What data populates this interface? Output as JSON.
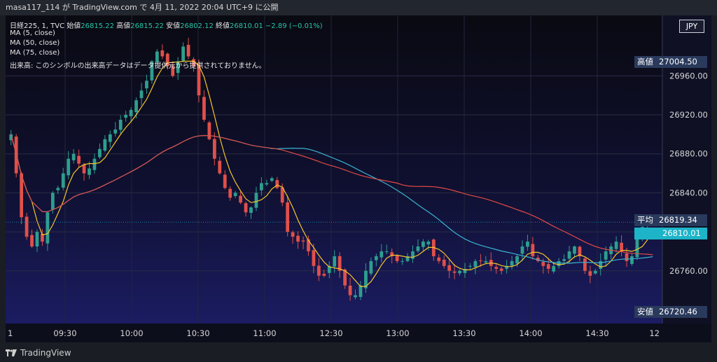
{
  "topbar": {
    "text": "masa117_114 が TradingView.com で 4月 11, 2022 20:04 UTC+9 に公開"
  },
  "legend": {
    "line1_symbol": "日経225, 1, TVC",
    "open_label": "始値",
    "open_value": "26815.22",
    "high_label": "高値",
    "high_value": "26815.22",
    "low_label": "安値",
    "low_value": "26802.12",
    "close_label": "終値",
    "close_value": "26810.01",
    "change": "−2.89 (−0.01%)",
    "ma5": "MA (5, close)",
    "ma50": "MA (50, close)",
    "ma75": "MA (75, close)",
    "volume_note": "出来高: このシンボルの出来高データはデータ提供元から提供されておりません。"
  },
  "currency_button": "JPY",
  "price_tags": {
    "high_label": "高値",
    "high_value": "27004.50",
    "avg_label": "平均",
    "avg_value": "26819.34",
    "last_value": "26810.01",
    "low_label": "安値",
    "low_value": "26720.46"
  },
  "footer": {
    "logo_text": "TradingView"
  },
  "colors": {
    "background_top": "#0a0a12",
    "background_bottom": "#191a5a",
    "up": "#2e9e8f",
    "down": "#e0504a",
    "ma5": "#f5c52b",
    "ma50": "#3ab3d0",
    "ma75": "#e04a44",
    "last_price": "#1db4c8"
  },
  "chart_data": {
    "type": "candlestick",
    "y_axis": {
      "ticks": [
        26760,
        26800,
        26840,
        26880,
        26920,
        26960
      ],
      "ylim": [
        26706,
        27022
      ],
      "position": "right"
    },
    "x_axis": {
      "ticks": [
        "09:30",
        "10:00",
        "10:30",
        "11:00",
        "12:30",
        "13:00",
        "13:30",
        "14:00",
        "14:30"
      ]
    },
    "x_edge_labels": {
      "left": "1",
      "right": "12"
    },
    "series": [
      {
        "name": "MA (5, close)"
      },
      {
        "name": "MA (50, close)"
      },
      {
        "name": "MA (75, close)"
      }
    ],
    "close": [
      26900,
      26860,
      26815,
      26795,
      26785,
      26800,
      26790,
      26820,
      26840,
      26845,
      26860,
      26875,
      26880,
      26870,
      26860,
      26865,
      26875,
      26885,
      26895,
      26900,
      26905,
      26915,
      26920,
      26925,
      26935,
      26945,
      26955,
      26975,
      26985,
      26980,
      26970,
      26960,
      26975,
      26990,
      26980,
      26970,
      26940,
      26915,
      26895,
      26875,
      26860,
      26845,
      26835,
      26840,
      26830,
      26820,
      26825,
      26840,
      26850,
      26850,
      26855,
      26845,
      26830,
      26800,
      26795,
      26790,
      26790,
      26780,
      26765,
      26755,
      26755,
      26765,
      26775,
      26760,
      26745,
      26735,
      26735,
      26745,
      26760,
      26770,
      26775,
      26780,
      26780,
      26775,
      26770,
      26770,
      26775,
      26780,
      26785,
      26790,
      26790,
      26775,
      26770,
      26765,
      26760,
      26758,
      26760,
      26762,
      26765,
      26770,
      26770,
      26770,
      26765,
      26762,
      26760,
      26765,
      26770,
      26775,
      26785,
      26790,
      26775,
      26770,
      26765,
      26762,
      26765,
      26770,
      26772,
      26780,
      26785,
      26775,
      26760,
      26755,
      26760,
      26770,
      26780,
      26785,
      26790,
      26780,
      26770,
      26775,
      26795,
      26805,
      26815,
      26810
    ]
  }
}
